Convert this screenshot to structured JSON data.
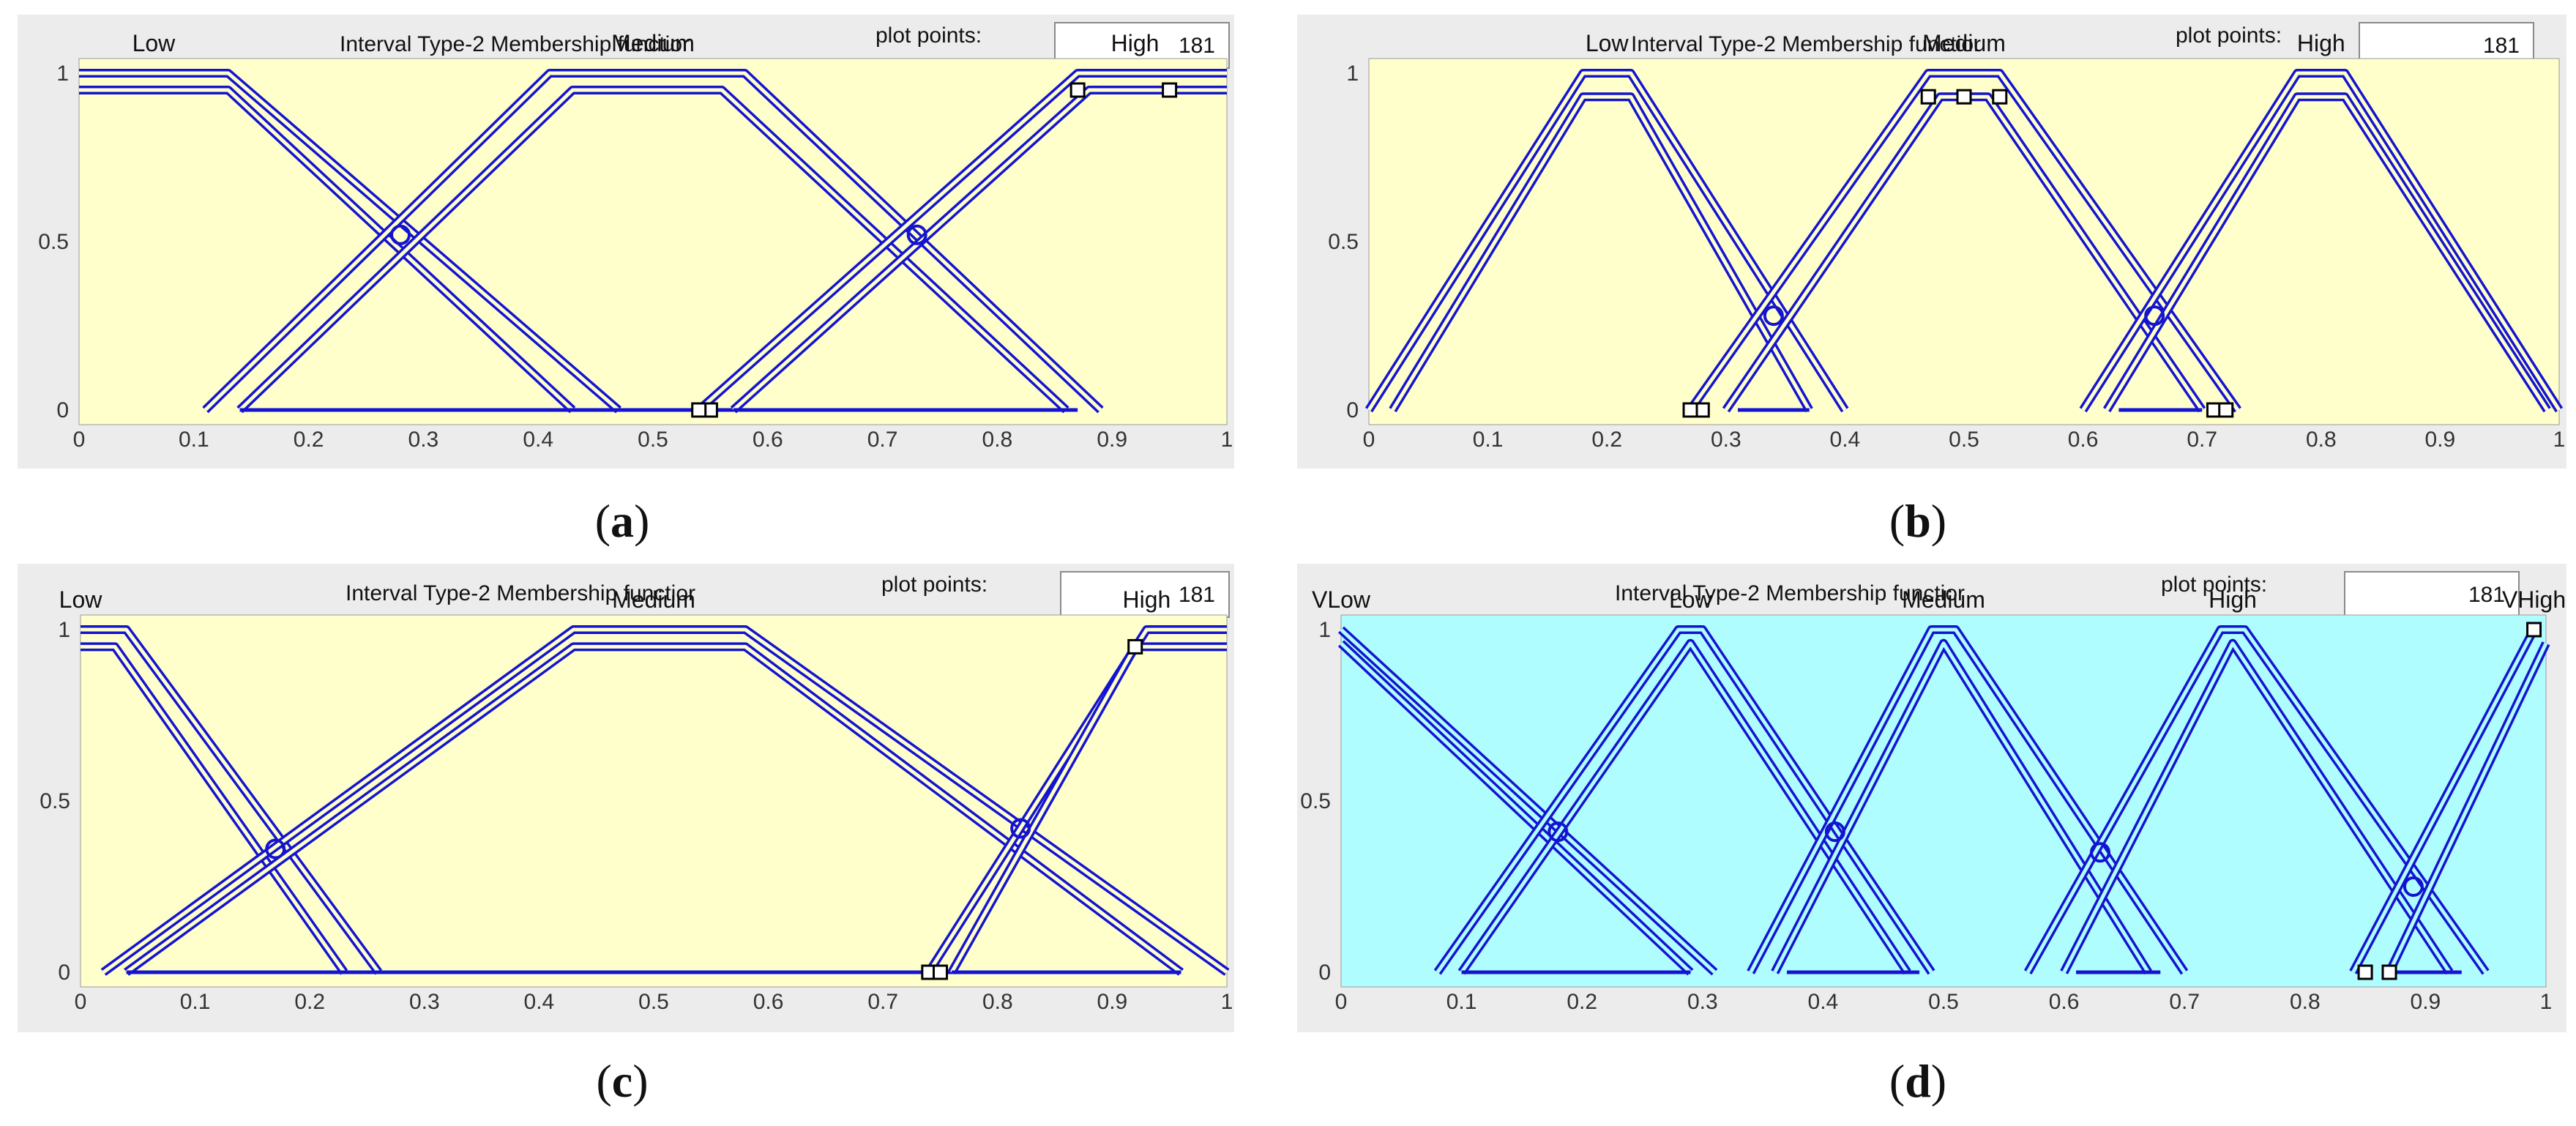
{
  "panels": [
    {
      "label": "a",
      "title": "Interval Type-2 Membership functior",
      "plot_points_label": "plot points:",
      "plot_points_value": "181"
    },
    {
      "label": "b",
      "title": "Interval Type-2 Membership functior",
      "plot_points_label": "plot points:",
      "plot_points_value": "181"
    },
    {
      "label": "c",
      "title": "Interval Type-2 Membership functior",
      "plot_points_label": "plot points:",
      "plot_points_value": "181"
    },
    {
      "label": "d",
      "title": "Interval Type-2 Membership functior",
      "plot_points_label": "plot points:",
      "plot_points_value": "181"
    }
  ],
  "colors": {
    "panel_bg": "#ececec",
    "plot_bg_yellow": "#ffffcc",
    "plot_bg_cyan": "#b0fdff",
    "curve": "#1414d0"
  },
  "chart_data": [
    {
      "type": "line",
      "xlim": [
        0,
        1
      ],
      "ylim": [
        0,
        1
      ],
      "xticks": [
        "0",
        "0.1",
        "0.2",
        "0.3",
        "0.4",
        "0.5",
        "0.6",
        "0.7",
        "0.8",
        "0.9",
        "1"
      ],
      "yticks": [
        "0",
        "0.5",
        "1"
      ],
      "plot_bg": "#ffffcc",
      "sets": [
        {
          "name": "Low",
          "label_x": 0.065,
          "upper": [
            [
              0,
              1
            ],
            [
              0.13,
              1
            ],
            [
              0.47,
              0
            ]
          ],
          "lower": [
            [
              0,
              0.95
            ],
            [
              0.13,
              0.95
            ],
            [
              0.43,
              0
            ]
          ],
          "lower_base": [
            0.14,
            0.43
          ]
        },
        {
          "name": "Medium",
          "label_x": 0.5,
          "upper": [
            [
              0.11,
              0
            ],
            [
              0.41,
              1
            ],
            [
              0.58,
              1
            ],
            [
              0.89,
              0
            ]
          ],
          "lower": [
            [
              0.14,
              0
            ],
            [
              0.43,
              0.95
            ],
            [
              0.56,
              0.95
            ],
            [
              0.86,
              0
            ]
          ],
          "lower_base": [
            0.14,
            0.86
          ]
        },
        {
          "name": "High",
          "label_x": 0.92,
          "upper": [
            [
              0.54,
              0
            ],
            [
              0.87,
              1
            ],
            [
              1,
              1
            ]
          ],
          "lower": [
            [
              0.57,
              0
            ],
            [
              0.88,
              0.95
            ],
            [
              1,
              0.95
            ]
          ],
          "lower_base": [
            0.57,
            0.87
          ]
        }
      ],
      "markers": [
        [
          0.55,
          0
        ],
        [
          0.54,
          0
        ],
        [
          0.87,
          0.95
        ],
        [
          0.95,
          0.95
        ]
      ],
      "crossings": [
        [
          0.28,
          0.52
        ],
        [
          0.73,
          0.52
        ]
      ]
    },
    {
      "type": "line",
      "xlim": [
        0,
        1
      ],
      "ylim": [
        0,
        1
      ],
      "xticks": [
        "0",
        "0.1",
        "0.2",
        "0.3",
        "0.4",
        "0.5",
        "0.6",
        "0.7",
        "0.8",
        "0.9",
        "1"
      ],
      "yticks": [
        "0",
        "0.5",
        "1"
      ],
      "plot_bg": "#ffffcc",
      "sets": [
        {
          "name": "Low",
          "label_x": 0.2,
          "upper": [
            [
              0,
              0
            ],
            [
              0.18,
              1
            ],
            [
              0.22,
              1
            ],
            [
              0.4,
              0
            ]
          ],
          "lower": [
            [
              0.02,
              0
            ],
            [
              0.18,
              0.93
            ],
            [
              0.22,
              0.93
            ],
            [
              0.37,
              0
            ]
          ],
          "lower_base": [
            0.31,
            0.37
          ]
        },
        {
          "name": "Medium",
          "label_x": 0.5,
          "upper": [
            [
              0.27,
              0
            ],
            [
              0.47,
              1
            ],
            [
              0.53,
              1
            ],
            [
              0.73,
              0
            ]
          ],
          "lower": [
            [
              0.3,
              0
            ],
            [
              0.48,
              0.93
            ],
            [
              0.52,
              0.93
            ],
            [
              0.7,
              0
            ]
          ],
          "lower_base": [
            0.31,
            0.37
          ]
        },
        {
          "name": "High",
          "label_x": 0.8,
          "upper": [
            [
              0.6,
              0
            ],
            [
              0.78,
              1
            ],
            [
              0.82,
              1
            ],
            [
              1,
              0
            ]
          ],
          "lower": [
            [
              0.62,
              0
            ],
            [
              0.78,
              0.93
            ],
            [
              0.82,
              0.93
            ],
            [
              0.99,
              0
            ]
          ],
          "lower_base": [
            0.63,
            0.7
          ]
        }
      ],
      "markers": [
        [
          0.28,
          0
        ],
        [
          0.27,
          0
        ],
        [
          0.47,
          0.93
        ],
        [
          0.5,
          0.93
        ],
        [
          0.53,
          0.93
        ],
        [
          0.71,
          0
        ],
        [
          0.72,
          0
        ]
      ],
      "crossings": [
        [
          0.34,
          0.28
        ],
        [
          0.66,
          0.28
        ]
      ]
    },
    {
      "type": "line",
      "xlim": [
        0,
        1
      ],
      "ylim": [
        0,
        1
      ],
      "xticks": [
        "0",
        "0.1",
        "0.2",
        "0.3",
        "0.4",
        "0.5",
        "0.6",
        "0.7",
        "0.8",
        "0.9",
        "1"
      ],
      "yticks": [
        "0",
        "0.5",
        "1"
      ],
      "plot_bg": "#ffffcc",
      "sets": [
        {
          "name": "Low",
          "label_x": 0.0,
          "upper": [
            [
              0,
              1
            ],
            [
              0.04,
              1
            ],
            [
              0.26,
              0
            ]
          ],
          "lower": [
            [
              0,
              0.95
            ],
            [
              0.03,
              0.95
            ],
            [
              0.23,
              0
            ]
          ],
          "lower_base": [
            0.04,
            0.23
          ]
        },
        {
          "name": "Medium",
          "label_x": 0.5,
          "upper": [
            [
              0.02,
              0
            ],
            [
              0.43,
              1
            ],
            [
              0.58,
              1
            ],
            [
              1,
              0
            ]
          ],
          "lower": [
            [
              0.04,
              0
            ],
            [
              0.43,
              0.95
            ],
            [
              0.58,
              0.95
            ],
            [
              0.96,
              0
            ]
          ],
          "lower_base": [
            0.04,
            0.96
          ]
        },
        {
          "name": "High",
          "label_x": 0.93,
          "upper": [
            [
              0.74,
              0
            ],
            [
              0.93,
              1
            ],
            [
              1,
              1
            ]
          ],
          "lower": [
            [
              0.76,
              0
            ],
            [
              0.92,
              0.95
            ],
            [
              1,
              0.95
            ]
          ],
          "lower_base": [
            0.76,
            0.96
          ]
        }
      ],
      "markers": [
        [
          0.74,
          0
        ],
        [
          0.75,
          0
        ],
        [
          0.92,
          0.95
        ]
      ],
      "crossings": [
        [
          0.17,
          0.36
        ],
        [
          0.82,
          0.42
        ]
      ]
    },
    {
      "type": "line",
      "xlim": [
        0,
        1
      ],
      "ylim": [
        0,
        1
      ],
      "xticks": [
        "0",
        "0.1",
        "0.2",
        "0.3",
        "0.4",
        "0.5",
        "0.6",
        "0.7",
        "0.8",
        "0.9",
        "1"
      ],
      "yticks": [
        "0",
        "0.5",
        "1"
      ],
      "plot_bg": "#b0fdff",
      "sets": [
        {
          "name": "VLow",
          "label_x": 0.0,
          "upper": [
            [
              0,
              1
            ],
            [
              0.31,
              0
            ]
          ],
          "lower": [
            [
              0,
              0.96
            ],
            [
              0.29,
              0
            ]
          ],
          "lower_base": [
            0.1,
            0.29
          ]
        },
        {
          "name": "Low",
          "label_x": 0.29,
          "upper": [
            [
              0.08,
              0
            ],
            [
              0.28,
              1
            ],
            [
              0.3,
              1
            ],
            [
              0.49,
              0
            ]
          ],
          "lower": [
            [
              0.1,
              0
            ],
            [
              0.29,
              0.96
            ],
            [
              0.47,
              0
            ]
          ],
          "lower_base": [
            0.1,
            0.29
          ]
        },
        {
          "name": "Medium",
          "label_x": 0.5,
          "upper": [
            [
              0.34,
              0
            ],
            [
              0.49,
              1
            ],
            [
              0.51,
              1
            ],
            [
              0.7,
              0
            ]
          ],
          "lower": [
            [
              0.36,
              0
            ],
            [
              0.5,
              0.96
            ],
            [
              0.67,
              0
            ]
          ],
          "lower_base": [
            0.37,
            0.48
          ]
        },
        {
          "name": "High",
          "label_x": 0.74,
          "upper": [
            [
              0.57,
              0
            ],
            [
              0.73,
              1
            ],
            [
              0.75,
              1
            ],
            [
              0.95,
              0
            ]
          ],
          "lower": [
            [
              0.6,
              0
            ],
            [
              0.74,
              0.96
            ],
            [
              0.92,
              0
            ]
          ],
          "lower_base": [
            0.61,
            0.68
          ]
        },
        {
          "name": "VHigh",
          "label_x": 0.99,
          "upper": [
            [
              0.84,
              0
            ],
            [
              0.99,
              1
            ]
          ],
          "lower": [
            [
              0.87,
              0
            ],
            [
              1,
              0.96
            ]
          ],
          "lower_base": [
            0.87,
            0.93
          ]
        }
      ],
      "markers": [
        [
          0.85,
          0
        ],
        [
          0.87,
          0
        ],
        [
          0.99,
          1
        ]
      ],
      "crossings": [
        [
          0.18,
          0.41
        ],
        [
          0.41,
          0.41
        ],
        [
          0.63,
          0.35
        ],
        [
          0.89,
          0.25
        ]
      ]
    }
  ]
}
